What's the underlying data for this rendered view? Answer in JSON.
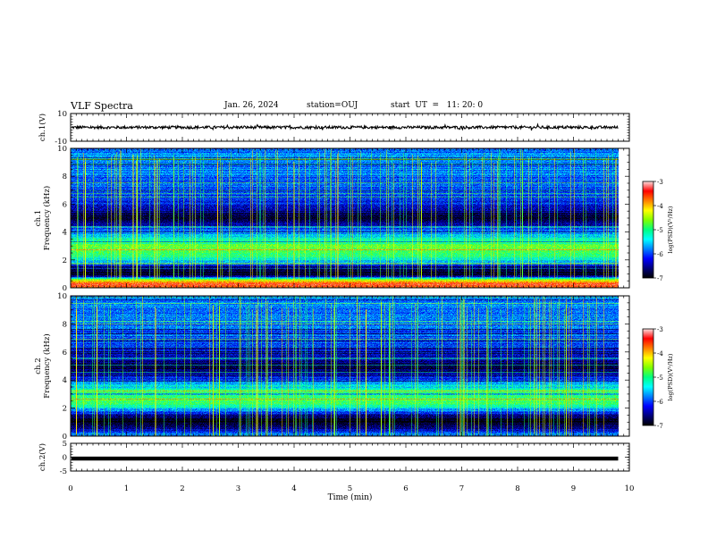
{
  "header": {
    "title": "VLF Spectra",
    "date": "Jan. 26, 2024",
    "station": "station=OUJ",
    "start": "start  UT  =   11: 20: 0"
  },
  "chart_data": [
    {
      "type": "line",
      "name": "waveform-ch1",
      "ylabel": "ch.1(V)",
      "ylim": [
        -10,
        10
      ],
      "yticks": [
        "10",
        "-10"
      ],
      "xlim": [
        0,
        10
      ],
      "trace_level": 0.0,
      "trace_amplitude": 1.0
    },
    {
      "type": "heatmap",
      "name": "spectrogram-ch1",
      "ylabel": "ch.1\nFrequency  (kHz)",
      "ylim": [
        0,
        10
      ],
      "yticks": [
        "0",
        "2",
        "4",
        "6",
        "8",
        "10"
      ],
      "xlim": [
        0,
        10
      ],
      "data_end_min": 9.8,
      "colorbar": {
        "label": "log(PSD)(V²/Hz)",
        "range": [
          -7,
          -3
        ],
        "ticks": [
          "-3",
          "-4",
          "-5",
          "-6",
          "-7"
        ]
      },
      "band_profile_khz": [
        [
          0.0,
          -3.6
        ],
        [
          0.3,
          -3.4
        ],
        [
          0.6,
          -4.6
        ],
        [
          0.9,
          -6.8
        ],
        [
          1.3,
          -6.9
        ],
        [
          1.6,
          -6.3
        ],
        [
          1.9,
          -5.6
        ],
        [
          2.2,
          -5.0
        ],
        [
          2.6,
          -4.7
        ],
        [
          3.0,
          -4.8
        ],
        [
          3.4,
          -5.1
        ],
        [
          3.8,
          -5.6
        ],
        [
          4.2,
          -6.1
        ],
        [
          4.6,
          -6.5
        ],
        [
          5.0,
          -6.9
        ],
        [
          5.5,
          -6.4
        ],
        [
          6.0,
          -6.2
        ],
        [
          7.0,
          -6.0
        ],
        [
          8.0,
          -5.9
        ],
        [
          9.0,
          -5.8
        ],
        [
          10.0,
          -5.8
        ]
      ]
    },
    {
      "type": "heatmap",
      "name": "spectrogram-ch2",
      "ylabel": "ch.2\nFrequency  (kHz)",
      "ylim": [
        0,
        10
      ],
      "yticks": [
        "0",
        "2",
        "4",
        "6",
        "8",
        "10"
      ],
      "xlim": [
        0,
        10
      ],
      "data_end_min": 9.8,
      "colorbar": {
        "label": "log(PSD)(V²/Hz)",
        "range": [
          -7,
          -3
        ],
        "ticks": [
          "-3",
          "-4",
          "-5",
          "-6",
          "-7"
        ]
      },
      "band_profile_khz": [
        [
          0.0,
          -5.8
        ],
        [
          0.3,
          -6.0
        ],
        [
          0.6,
          -6.6
        ],
        [
          0.9,
          -6.9
        ],
        [
          1.3,
          -6.9
        ],
        [
          1.6,
          -6.3
        ],
        [
          1.9,
          -5.6
        ],
        [
          2.2,
          -5.0
        ],
        [
          2.6,
          -4.8
        ],
        [
          3.0,
          -4.9
        ],
        [
          3.4,
          -5.2
        ],
        [
          3.8,
          -5.7
        ],
        [
          4.2,
          -6.2
        ],
        [
          4.6,
          -6.6
        ],
        [
          5.0,
          -6.9
        ],
        [
          5.5,
          -6.4
        ],
        [
          6.0,
          -6.2
        ],
        [
          7.0,
          -6.0
        ],
        [
          8.0,
          -5.9
        ],
        [
          9.0,
          -5.8
        ],
        [
          10.0,
          -5.8
        ]
      ]
    },
    {
      "type": "line",
      "name": "waveform-ch2",
      "ylabel": "ch.2(V)",
      "ylim": [
        -5,
        5
      ],
      "yticks": [
        "5",
        "0",
        "-5"
      ],
      "xlim": [
        0,
        10
      ],
      "trace_level": -0.5,
      "trace_amplitude": 0.15
    }
  ],
  "x_axis": {
    "label": "Time  (min)",
    "ticks": [
      "0",
      "1",
      "2",
      "3",
      "4",
      "5",
      "6",
      "7",
      "8",
      "9",
      "10"
    ]
  },
  "colors": {
    "colormap": [
      "#000000",
      "#00007a",
      "#0000ff",
      "#0080ff",
      "#00ffff",
      "#00ff80",
      "#80ff00",
      "#ffff00",
      "#ff8000",
      "#ff0000",
      "#ffe0e0"
    ]
  }
}
